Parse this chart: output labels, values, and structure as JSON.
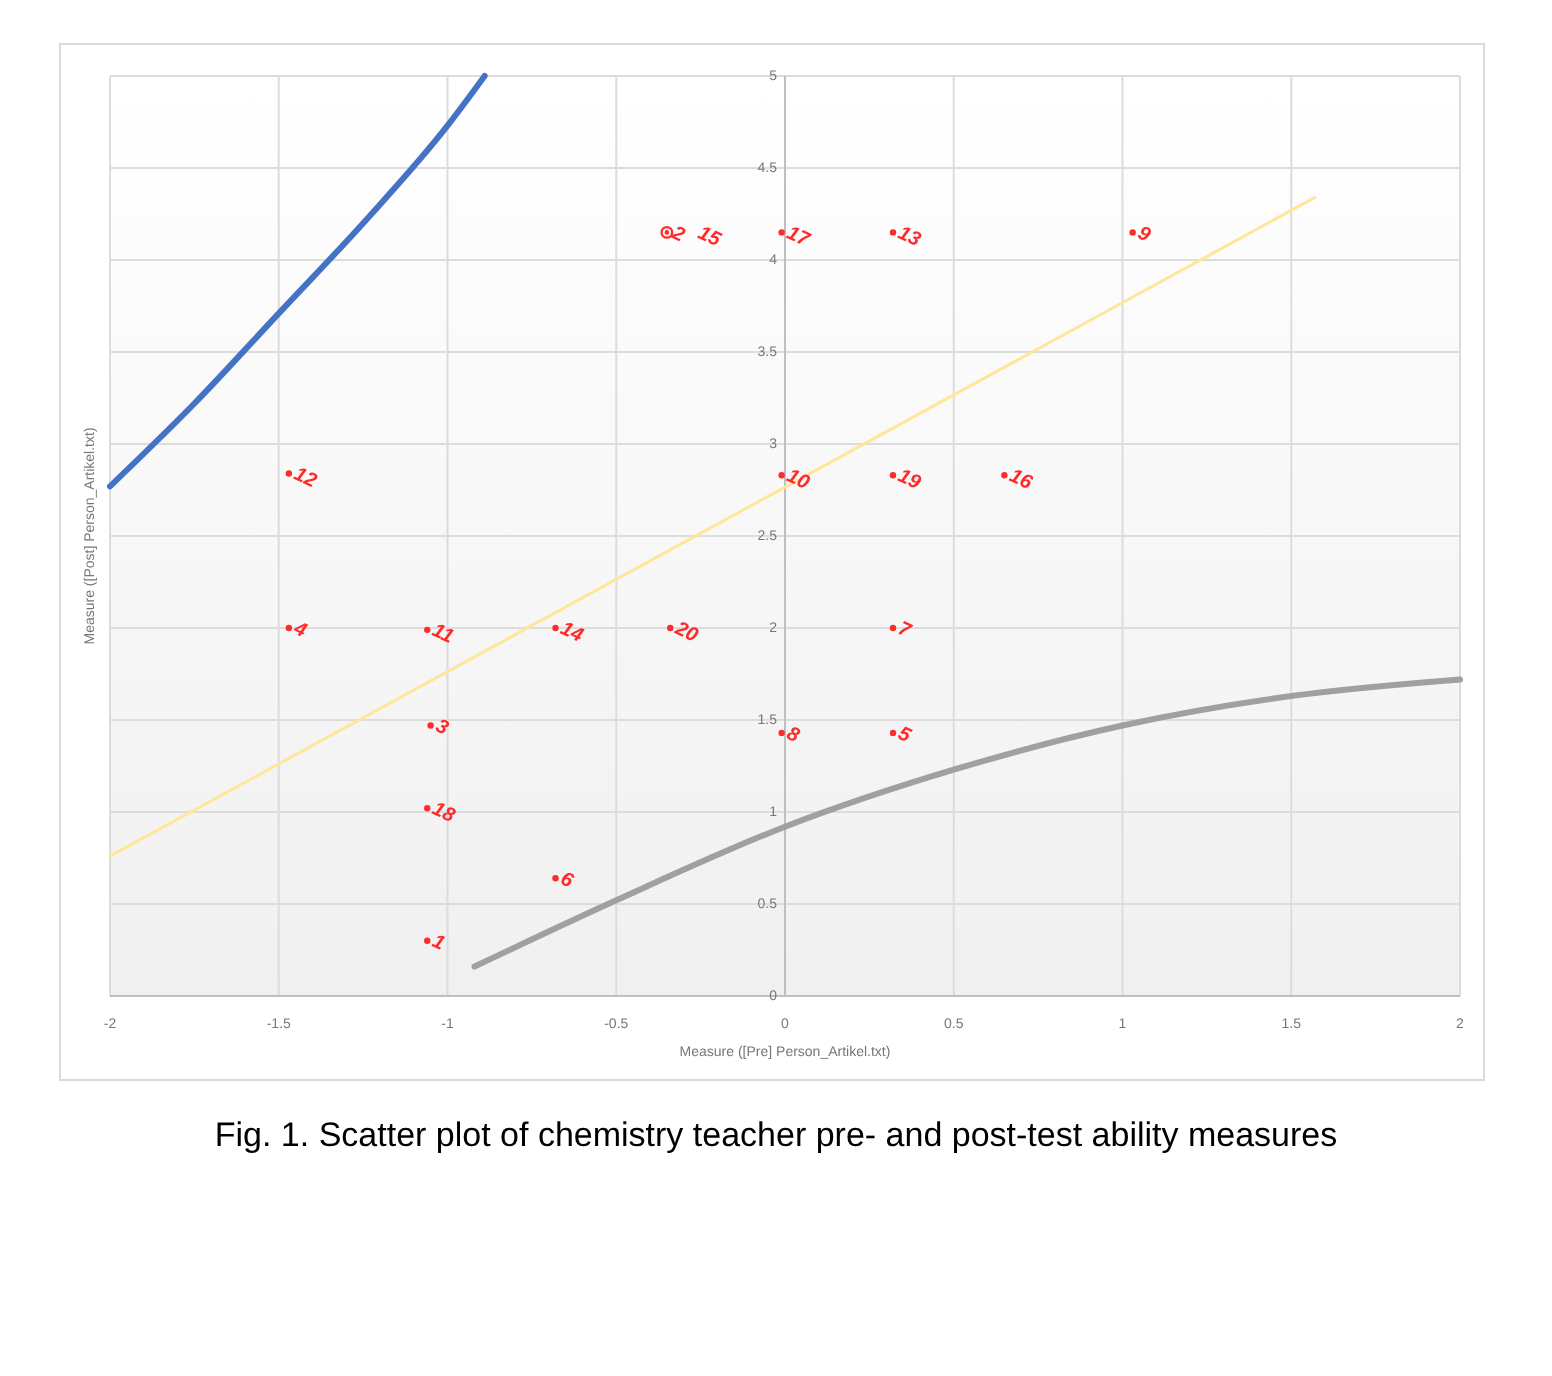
{
  "chart_data": {
    "type": "scatter",
    "xlabel": "Measure ([Pre] Person_Artikel.txt)",
    "ylabel": "Measure ([Post] Person_Artikel.txt)",
    "annotations": [
      "Fig. 1. Scatter plot of chemistry teacher pre- and post-test ability measures"
    ],
    "xlim": [
      -2,
      2
    ],
    "xticks": [
      -2,
      -1.5,
      -1,
      -0.5,
      0,
      0.5,
      1,
      1.5,
      2
    ],
    "ylim": [
      0,
      5
    ],
    "yticks": [
      0,
      0.5,
      1,
      1.5,
      2,
      2.5,
      3,
      3.5,
      4,
      4.5,
      5
    ],
    "grid": true,
    "line_style": "solid",
    "series": [
      {
        "type": "line",
        "color": "#4472c4",
        "x": [
          -2,
          -1.75,
          -1.5,
          -1.25,
          -1,
          -0.89
        ],
        "values": [
          2.77,
          3.22,
          3.71,
          4.2,
          4.73,
          5
        ]
      },
      {
        "type": "line",
        "color": "#ffe699",
        "x": [
          -2,
          1.57
        ],
        "values": [
          0.76,
          4.34
        ]
      },
      {
        "type": "line",
        "color": "#a0a0a0",
        "x": [
          -0.92,
          -0.5,
          0,
          0.5,
          1,
          1.5,
          2
        ],
        "values": [
          0.16,
          0.52,
          0.92,
          1.23,
          1.47,
          1.63,
          1.72
        ]
      },
      {
        "name": "1",
        "color": "#ff2a2a",
        "marker": "circle",
        "x": [
          -1.06
        ],
        "values": [
          0.3
        ]
      },
      {
        "name": "2",
        "color": "#ff2a2a",
        "marker": "circle",
        "x": [
          -0.35
        ],
        "values": [
          4.15
        ]
      },
      {
        "name": "3",
        "color": "#ff2a2a",
        "marker": "circle",
        "x": [
          -1.05
        ],
        "values": [
          1.47
        ]
      },
      {
        "name": "4",
        "color": "#ff2a2a",
        "marker": "circle",
        "x": [
          -1.47
        ],
        "values": [
          2.0
        ]
      },
      {
        "name": "5",
        "color": "#ff2a2a",
        "marker": "circle",
        "x": [
          0.32
        ],
        "values": [
          1.43
        ]
      },
      {
        "name": "6",
        "color": "#ff2a2a",
        "marker": "circle",
        "x": [
          -0.68
        ],
        "values": [
          0.64
        ]
      },
      {
        "name": "7",
        "color": "#ff2a2a",
        "marker": "circle",
        "x": [
          0.32
        ],
        "values": [
          2.0
        ]
      },
      {
        "name": "8",
        "color": "#ff2a2a",
        "marker": "circle",
        "x": [
          -0.01
        ],
        "values": [
          1.43
        ]
      },
      {
        "name": "9",
        "color": "#ff2a2a",
        "marker": "circle",
        "x": [
          1.03
        ],
        "values": [
          4.15
        ]
      },
      {
        "name": "10",
        "color": "#ff2a2a",
        "marker": "circle",
        "x": [
          -0.01
        ],
        "values": [
          2.83
        ]
      },
      {
        "name": "11",
        "color": "#ff2a2a",
        "marker": "circle",
        "x": [
          -1.06
        ],
        "values": [
          1.99
        ]
      },
      {
        "name": "12",
        "color": "#ff2a2a",
        "marker": "circle",
        "x": [
          -1.47
        ],
        "values": [
          2.84
        ]
      },
      {
        "name": "13",
        "color": "#ff2a2a",
        "marker": "circle",
        "x": [
          0.32
        ],
        "values": [
          4.15
        ]
      },
      {
        "name": "14",
        "color": "#ff2a2a",
        "marker": "circle",
        "x": [
          -0.68
        ],
        "values": [
          2.0
        ]
      },
      {
        "name": "15",
        "color": "#ff2a2a",
        "marker": "circle",
        "x": [
          -0.35
        ],
        "values": [
          4.15
        ]
      },
      {
        "name": "16",
        "color": "#ff2a2a",
        "marker": "circle",
        "x": [
          0.65
        ],
        "values": [
          2.83
        ]
      },
      {
        "name": "17",
        "color": "#ff2a2a",
        "marker": "circle",
        "x": [
          -0.01
        ],
        "values": [
          4.15
        ]
      },
      {
        "name": "18",
        "color": "#ff2a2a",
        "marker": "circle",
        "x": [
          -1.06
        ],
        "values": [
          1.02
        ]
      },
      {
        "name": "19",
        "color": "#ff2a2a",
        "marker": "circle",
        "x": [
          0.32
        ],
        "values": [
          2.83
        ]
      },
      {
        "name": "20",
        "color": "#ff2a2a",
        "marker": "circle",
        "x": [
          -0.34
        ],
        "values": [
          2.0
        ]
      }
    ]
  }
}
